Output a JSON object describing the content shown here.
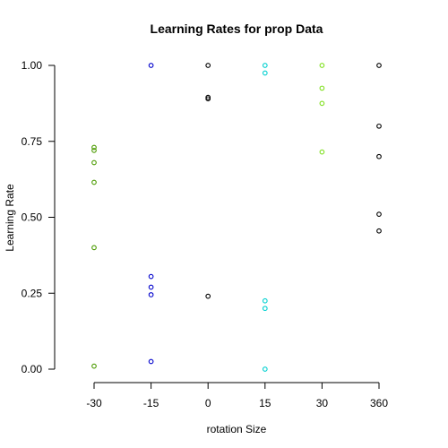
{
  "chart_data": {
    "type": "scatter",
    "title": "Learning Rates for prop Data",
    "xlabel": "rotation Size",
    "ylabel": "Learning Rate",
    "categories": [
      "-30",
      "-15",
      "0",
      "15",
      "30",
      "360"
    ],
    "ylim": [
      0,
      1
    ],
    "yticks": [
      "0.00",
      "0.25",
      "0.50",
      "0.75",
      "1.00"
    ],
    "grid": false,
    "series": [
      {
        "category": "-30",
        "color": "#4a9a00",
        "values": [
          0.73,
          0.72,
          0.68,
          0.615,
          0.4,
          0.01
        ]
      },
      {
        "category": "-15",
        "color": "#0000cc",
        "values": [
          1.0,
          0.305,
          0.27,
          0.245,
          0.025
        ]
      },
      {
        "category": "0",
        "color": "#000000",
        "values": [
          1.0,
          0.895,
          0.89,
          0.24
        ]
      },
      {
        "category": "15",
        "color": "#00d0d0",
        "values": [
          1.0,
          0.975,
          0.225,
          0.2,
          0.0
        ]
      },
      {
        "category": "30",
        "color": "#80e020",
        "values": [
          1.0,
          0.925,
          0.875,
          0.715
        ]
      },
      {
        "category": "360",
        "color": "#000000",
        "values": [
          1.0,
          0.8,
          0.7,
          0.51,
          0.455
        ]
      }
    ]
  }
}
